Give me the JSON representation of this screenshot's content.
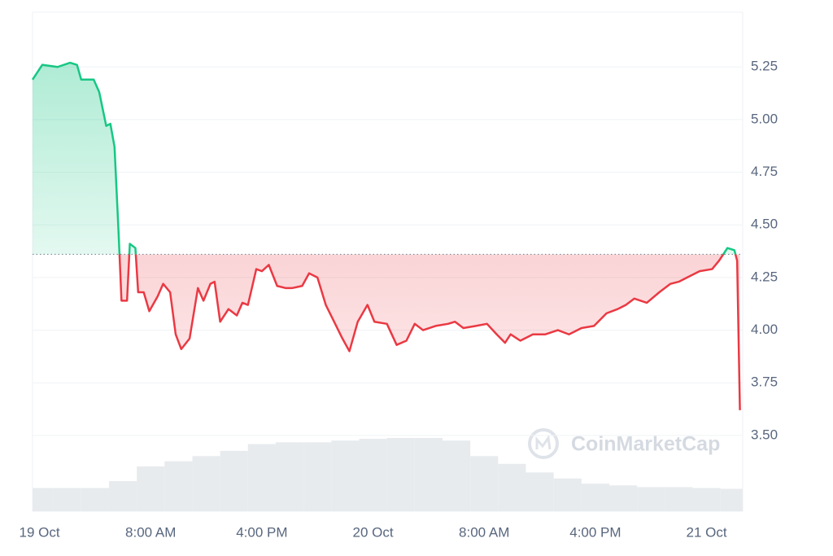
{
  "chart_data": {
    "type": "line",
    "x": [
      -0.5,
      0.2,
      1.3,
      2.2,
      2.7,
      3.0,
      3.9,
      4.3,
      4.8,
      5.1,
      5.4,
      5.7,
      5.9,
      6.3,
      6.5,
      6.9,
      7.1,
      7.5,
      7.9,
      8.5,
      8.9,
      9.4,
      9.8,
      10.2,
      10.8,
      11.4,
      11.8,
      12.3,
      12.6,
      13.0,
      13.6,
      14.2,
      14.6,
      15.0,
      15.6,
      16.0,
      16.5,
      17.1,
      17.7,
      18.2,
      18.9,
      19.4,
      20.0,
      20.6,
      21.2,
      21.8,
      22.3,
      22.9,
      23.6,
      24.1,
      25.0,
      25.7,
      26.4,
      27.0,
      27.6,
      28.5,
      29.4,
      29.9,
      30.5,
      31.4,
      32.2,
      32.9,
      33.5,
      33.9,
      34.6,
      35.5,
      36.4,
      37.3,
      38.1,
      39.0,
      39.9,
      40.8,
      41.6,
      42.2,
      42.8,
      43.7,
      44.6,
      45.4,
      46.0,
      46.6,
      47.5,
      48.4,
      48.9,
      49.5,
      50.0,
      50.2,
      50.4
    ],
    "values": [
      5.19,
      5.26,
      5.25,
      5.27,
      5.26,
      5.19,
      5.19,
      5.13,
      4.97,
      4.98,
      4.87,
      4.45,
      4.14,
      4.14,
      4.41,
      4.39,
      4.18,
      4.18,
      4.09,
      4.16,
      4.22,
      4.18,
      3.98,
      3.91,
      3.96,
      4.2,
      4.14,
      4.22,
      4.23,
      4.04,
      4.1,
      4.07,
      4.13,
      4.12,
      4.29,
      4.28,
      4.31,
      4.21,
      4.2,
      4.2,
      4.21,
      4.27,
      4.25,
      4.12,
      4.04,
      3.96,
      3.9,
      4.04,
      4.12,
      4.04,
      4.03,
      3.93,
      3.95,
      4.03,
      4.0,
      4.02,
      4.03,
      4.04,
      4.01,
      4.02,
      4.03,
      3.98,
      3.94,
      3.98,
      3.95,
      3.98,
      3.98,
      4.0,
      3.98,
      4.01,
      4.02,
      4.08,
      4.1,
      4.12,
      4.15,
      4.13,
      4.18,
      4.22,
      4.23,
      4.25,
      4.28,
      4.29,
      4.33,
      4.39,
      4.38,
      4.33,
      3.62
    ],
    "baseline": 4.36,
    "up_color": "#16c784",
    "down_color": "#ea3943",
    "volume": {
      "x": [
        0,
        2,
        4,
        6,
        8,
        10,
        12,
        14,
        16,
        18,
        20,
        22,
        24,
        26,
        28,
        30,
        32,
        34,
        36,
        38,
        40,
        42,
        44,
        46,
        48,
        50
      ],
      "values": [
        27,
        27,
        27,
        35,
        52,
        58,
        64,
        70,
        78,
        80,
        80,
        82,
        84,
        85,
        85,
        82,
        64,
        55,
        45,
        38,
        32,
        30,
        28,
        28,
        27,
        26
      ],
      "color": "#e8ebee"
    },
    "xlim": [
      -0.5,
      50.6
    ],
    "xticks": [
      {
        "value": 0,
        "label": "19 Oct"
      },
      {
        "value": 8,
        "label": "8:00 AM"
      },
      {
        "value": 16,
        "label": "4:00 PM"
      },
      {
        "value": 24,
        "label": "20 Oct"
      },
      {
        "value": 32,
        "label": "8:00 AM"
      },
      {
        "value": 40,
        "label": "4:00 PM"
      },
      {
        "value": 48,
        "label": "21 Oct"
      }
    ],
    "ylim": [
      3.14,
      5.51
    ],
    "yticks": [
      {
        "value": 3.5,
        "label": "3.50"
      },
      {
        "value": 3.75,
        "label": "3.75"
      },
      {
        "value": 4,
        "label": "4.00"
      },
      {
        "value": 4.25,
        "label": "4.25"
      },
      {
        "value": 4.5,
        "label": "4.50"
      },
      {
        "value": 4.75,
        "label": "4.75"
      },
      {
        "value": 5,
        "label": "5.00"
      },
      {
        "value": 5.25,
        "label": "5.25"
      }
    ],
    "grid": true,
    "watermark": "CoinMarketCap"
  }
}
